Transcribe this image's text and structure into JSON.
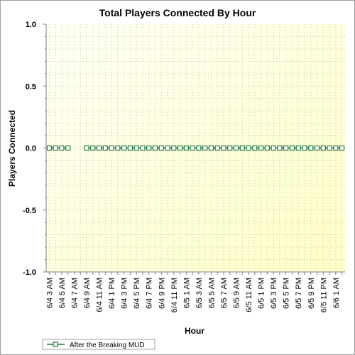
{
  "chart_data": {
    "type": "line",
    "title": "Total Players Connected By Hour",
    "xlabel": "Hour",
    "ylabel": "Players Connected",
    "ylim": [
      -1.0,
      1.0
    ],
    "yticks": [
      "1.0",
      "0.5",
      "0.0",
      "-0.5",
      "-1.0"
    ],
    "ytick_values": [
      1.0,
      0.5,
      0.0,
      -0.5,
      -1.0
    ],
    "x_tick_labels": [
      "6/4 3 AM",
      "6/4 5 AM",
      "6/4 7 AM",
      "6/4 9 AM",
      "6/4 11 AM",
      "6/4 1 PM",
      "6/4 3 PM",
      "6/4 5 PM",
      "6/4 7 PM",
      "6/4 9 PM",
      "6/4 11 PM",
      "6/5 1 AM",
      "6/5 3 AM",
      "6/5 5 AM",
      "6/5 7 AM",
      "6/5 9 AM",
      "6/5 11 AM",
      "6/5 1 PM",
      "6/5 3 PM",
      "6/5 5 PM",
      "6/5 7 PM",
      "6/5 9 PM",
      "6/5 11 PM",
      "6/6 1 AM"
    ],
    "grid": true,
    "legend_placement": "bottom-left",
    "background_gradient": [
      "#fffff6",
      "#fefec6"
    ],
    "series": [
      {
        "name": "After the Breaking MUD",
        "color": "#1f7a3a",
        "marker": "square",
        "values": [
          0,
          0,
          0,
          0,
          null,
          null,
          0,
          0,
          0,
          0,
          0,
          0,
          0,
          0,
          0,
          0,
          0,
          0,
          0,
          0,
          0,
          0,
          0,
          0,
          0,
          0,
          0,
          0,
          0,
          0,
          0,
          0,
          0,
          0,
          0,
          0,
          0,
          0,
          0,
          0,
          0,
          0,
          0,
          0,
          0,
          0,
          0,
          0
        ]
      }
    ]
  }
}
